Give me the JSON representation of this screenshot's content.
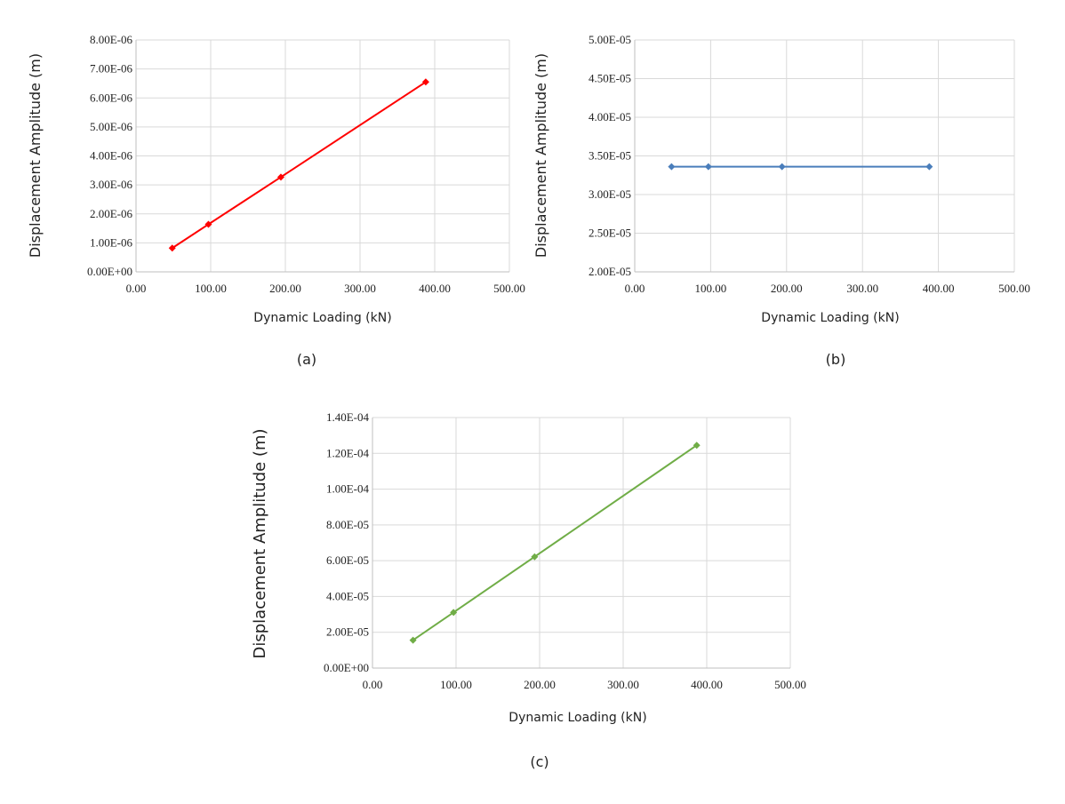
{
  "chart_data": [
    {
      "type": "line",
      "caption": "(a)",
      "xlabel": "Dynamic Loading (kN)",
      "ylabel": "Displacement Amplitude (m)",
      "xlim": [
        0,
        500
      ],
      "ylim": [
        0,
        8e-06
      ],
      "x_ticks": [
        "0.00",
        "100.00",
        "200.00",
        "300.00",
        "400.00",
        "500.00"
      ],
      "y_ticks": [
        "0.00E+00",
        "1.00E-06",
        "2.00E-06",
        "3.00E-06",
        "4.00E-06",
        "5.00E-06",
        "6.00E-06",
        "7.00E-06",
        "8.00E-06"
      ],
      "grid": true,
      "series": [
        {
          "color": "#ff0000",
          "marker": "diamond",
          "x": [
            48.5,
            97,
            194,
            388
          ],
          "y": [
            8.2e-07,
            1.64e-06,
            3.27e-06,
            6.55e-06
          ]
        }
      ]
    },
    {
      "type": "line",
      "caption": "(b)",
      "xlabel": "Dynamic Loading (kN)",
      "ylabel": "Displacement Amplitude (m)",
      "xlim": [
        0,
        500
      ],
      "ylim": [
        2e-05,
        5e-05
      ],
      "x_ticks": [
        "0.00",
        "100.00",
        "200.00",
        "300.00",
        "400.00",
        "500.00"
      ],
      "y_ticks": [
        "2.00E-05",
        "2.50E-05",
        "3.00E-05",
        "3.50E-05",
        "4.00E-05",
        "4.50E-05",
        "5.00E-05"
      ],
      "grid": true,
      "series": [
        {
          "color": "#4a7ebb",
          "marker": "diamond",
          "x": [
            48.5,
            97,
            194,
            388
          ],
          "y": [
            3.36e-05,
            3.36e-05,
            3.36e-05,
            3.36e-05
          ]
        }
      ]
    },
    {
      "type": "line",
      "caption": "(c)",
      "xlabel": "Dynamic Loading (kN)",
      "ylabel": "Displacement Amplitude (m)",
      "xlim": [
        0,
        500
      ],
      "ylim": [
        0,
        0.00014
      ],
      "x_ticks": [
        "0.00",
        "100.00",
        "200.00",
        "300.00",
        "400.00",
        "500.00"
      ],
      "y_ticks": [
        "0.00E+00",
        "2.00E-05",
        "4.00E-05",
        "6.00E-05",
        "8.00E-05",
        "1.00E-04",
        "1.20E-04",
        "1.40E-04"
      ],
      "grid": true,
      "series": [
        {
          "color": "#70ad47",
          "marker": "diamond",
          "x": [
            48.5,
            97,
            194,
            388
          ],
          "y": [
            1.56e-05,
            3.11e-05,
            6.22e-05,
            0.0001245
          ]
        }
      ]
    }
  ]
}
